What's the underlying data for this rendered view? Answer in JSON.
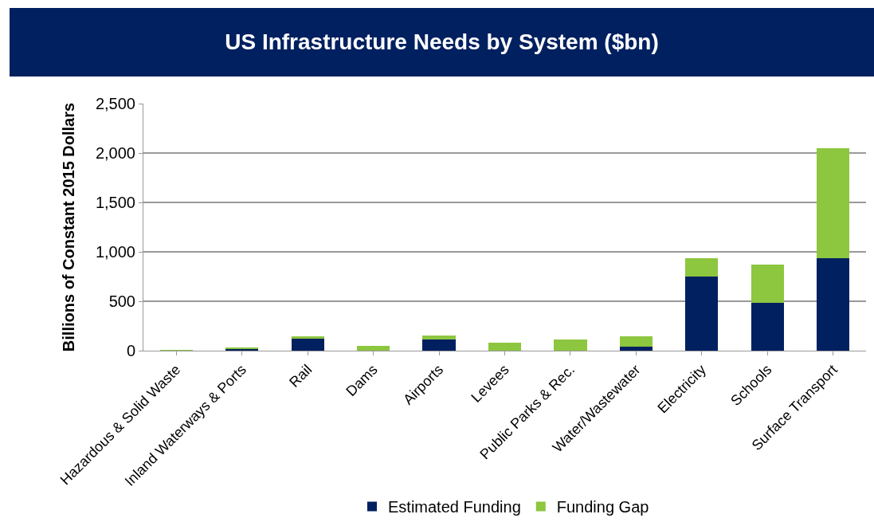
{
  "chart_data": {
    "type": "bar",
    "title": "US Infrastructure Needs by System ($bn)",
    "ylabel": "Billions of Constant 2015 Dollars",
    "categories": [
      "Hazardous & Solid Waste",
      "Inland Waterways & Ports",
      "Rail",
      "Dams",
      "Airports",
      "Levees",
      "Public Parks & Rec.",
      "Water/Wastewater",
      "Electricity",
      "Schools",
      "Surface Transport"
    ],
    "series": [
      {
        "name": "Estimated Funding",
        "color": "#002060",
        "values": [
          null,
          14,
          118,
          0,
          111,
          0,
          0,
          42,
          753,
          487,
          939
        ]
      },
      {
        "name": "Funding Gap",
        "color": "#8dc63f",
        "values": [
          3,
          20,
          31,
          45,
          45,
          80,
          111,
          104,
          180,
          380,
          1106
        ]
      }
    ],
    "stacked": true,
    "ylim": [
      0,
      2500
    ],
    "yticks": [
      0,
      {
        "value": 500,
        "label": "500"
      },
      {
        "value": 1000,
        "label": "1,000"
      },
      {
        "value": 1500,
        "label": "1,500"
      },
      {
        "value": 2000,
        "label": "2,000"
      },
      {
        "value": 2500,
        "label": "2,500"
      }
    ],
    "grid": "y",
    "legend": "bottom"
  }
}
